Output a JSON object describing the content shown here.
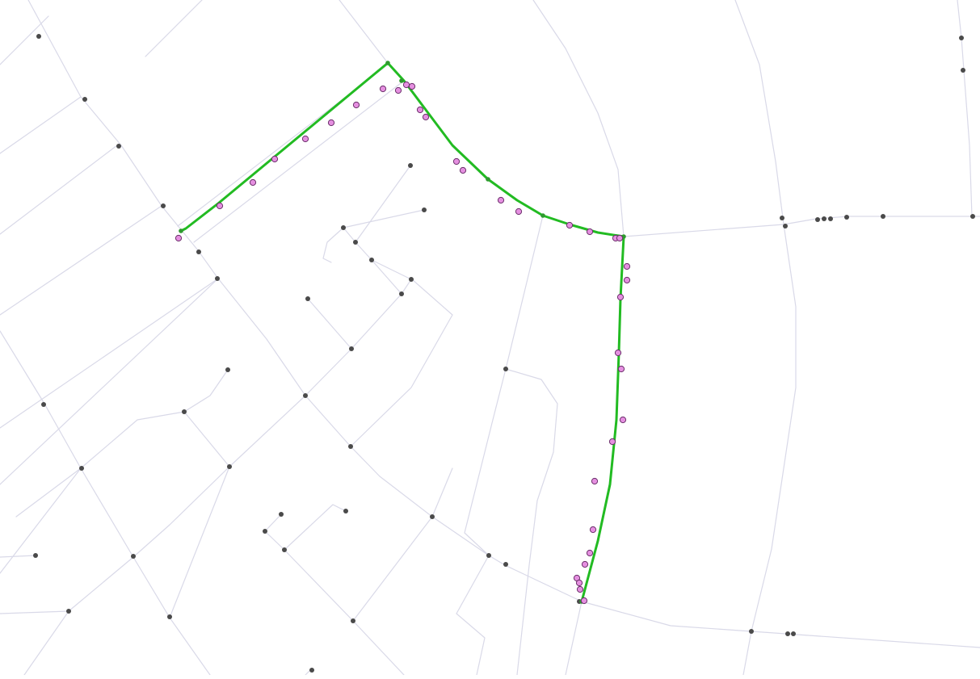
{
  "map": {
    "type": "map-matching-visualization",
    "colors": {
      "background": "#ffffff",
      "road": "#d9d9e8",
      "route": "#22bb22",
      "node": "#4a4a4a",
      "gps_point_fill": "#e58fe0",
      "gps_point_stroke": "#6a2f6a"
    },
    "layers": [
      "road-network",
      "network-nodes",
      "matched-route",
      "gps-points"
    ]
  }
}
